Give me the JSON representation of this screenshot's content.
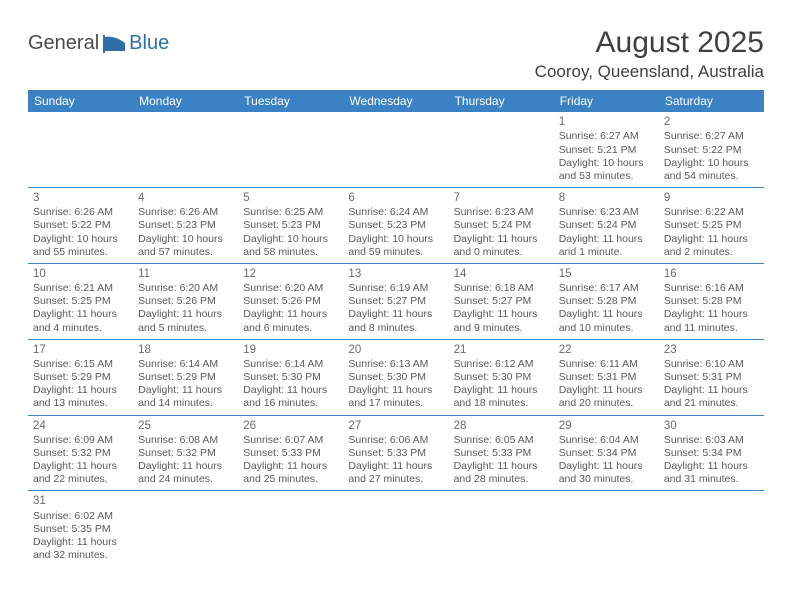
{
  "logo": {
    "text1": "General",
    "text2": "Blue"
  },
  "title": "August 2025",
  "location": "Cooroy, Queensland, Australia",
  "colors": {
    "header_bg": "#3b82c4",
    "border": "#3b82c4",
    "text": "#5a5a5a",
    "title_text": "#404040"
  },
  "daysOfWeek": [
    "Sunday",
    "Monday",
    "Tuesday",
    "Wednesday",
    "Thursday",
    "Friday",
    "Saturday"
  ],
  "weeks": [
    [
      {
        "n": "",
        "sr": "",
        "ss": "",
        "dl": ""
      },
      {
        "n": "",
        "sr": "",
        "ss": "",
        "dl": ""
      },
      {
        "n": "",
        "sr": "",
        "ss": "",
        "dl": ""
      },
      {
        "n": "",
        "sr": "",
        "ss": "",
        "dl": ""
      },
      {
        "n": "",
        "sr": "",
        "ss": "",
        "dl": ""
      },
      {
        "n": "1",
        "sr": "Sunrise: 6:27 AM",
        "ss": "Sunset: 5:21 PM",
        "dl": "Daylight: 10 hours and 53 minutes."
      },
      {
        "n": "2",
        "sr": "Sunrise: 6:27 AM",
        "ss": "Sunset: 5:22 PM",
        "dl": "Daylight: 10 hours and 54 minutes."
      }
    ],
    [
      {
        "n": "3",
        "sr": "Sunrise: 6:26 AM",
        "ss": "Sunset: 5:22 PM",
        "dl": "Daylight: 10 hours and 55 minutes."
      },
      {
        "n": "4",
        "sr": "Sunrise: 6:26 AM",
        "ss": "Sunset: 5:23 PM",
        "dl": "Daylight: 10 hours and 57 minutes."
      },
      {
        "n": "5",
        "sr": "Sunrise: 6:25 AM",
        "ss": "Sunset: 5:23 PM",
        "dl": "Daylight: 10 hours and 58 minutes."
      },
      {
        "n": "6",
        "sr": "Sunrise: 6:24 AM",
        "ss": "Sunset: 5:23 PM",
        "dl": "Daylight: 10 hours and 59 minutes."
      },
      {
        "n": "7",
        "sr": "Sunrise: 6:23 AM",
        "ss": "Sunset: 5:24 PM",
        "dl": "Daylight: 11 hours and 0 minutes."
      },
      {
        "n": "8",
        "sr": "Sunrise: 6:23 AM",
        "ss": "Sunset: 5:24 PM",
        "dl": "Daylight: 11 hours and 1 minute."
      },
      {
        "n": "9",
        "sr": "Sunrise: 6:22 AM",
        "ss": "Sunset: 5:25 PM",
        "dl": "Daylight: 11 hours and 2 minutes."
      }
    ],
    [
      {
        "n": "10",
        "sr": "Sunrise: 6:21 AM",
        "ss": "Sunset: 5:25 PM",
        "dl": "Daylight: 11 hours and 4 minutes."
      },
      {
        "n": "11",
        "sr": "Sunrise: 6:20 AM",
        "ss": "Sunset: 5:26 PM",
        "dl": "Daylight: 11 hours and 5 minutes."
      },
      {
        "n": "12",
        "sr": "Sunrise: 6:20 AM",
        "ss": "Sunset: 5:26 PM",
        "dl": "Daylight: 11 hours and 6 minutes."
      },
      {
        "n": "13",
        "sr": "Sunrise: 6:19 AM",
        "ss": "Sunset: 5:27 PM",
        "dl": "Daylight: 11 hours and 8 minutes."
      },
      {
        "n": "14",
        "sr": "Sunrise: 6:18 AM",
        "ss": "Sunset: 5:27 PM",
        "dl": "Daylight: 11 hours and 9 minutes."
      },
      {
        "n": "15",
        "sr": "Sunrise: 6:17 AM",
        "ss": "Sunset: 5:28 PM",
        "dl": "Daylight: 11 hours and 10 minutes."
      },
      {
        "n": "16",
        "sr": "Sunrise: 6:16 AM",
        "ss": "Sunset: 5:28 PM",
        "dl": "Daylight: 11 hours and 11 minutes."
      }
    ],
    [
      {
        "n": "17",
        "sr": "Sunrise: 6:15 AM",
        "ss": "Sunset: 5:29 PM",
        "dl": "Daylight: 11 hours and 13 minutes."
      },
      {
        "n": "18",
        "sr": "Sunrise: 6:14 AM",
        "ss": "Sunset: 5:29 PM",
        "dl": "Daylight: 11 hours and 14 minutes."
      },
      {
        "n": "19",
        "sr": "Sunrise: 6:14 AM",
        "ss": "Sunset: 5:30 PM",
        "dl": "Daylight: 11 hours and 16 minutes."
      },
      {
        "n": "20",
        "sr": "Sunrise: 6:13 AM",
        "ss": "Sunset: 5:30 PM",
        "dl": "Daylight: 11 hours and 17 minutes."
      },
      {
        "n": "21",
        "sr": "Sunrise: 6:12 AM",
        "ss": "Sunset: 5:30 PM",
        "dl": "Daylight: 11 hours and 18 minutes."
      },
      {
        "n": "22",
        "sr": "Sunrise: 6:11 AM",
        "ss": "Sunset: 5:31 PM",
        "dl": "Daylight: 11 hours and 20 minutes."
      },
      {
        "n": "23",
        "sr": "Sunrise: 6:10 AM",
        "ss": "Sunset: 5:31 PM",
        "dl": "Daylight: 11 hours and 21 minutes."
      }
    ],
    [
      {
        "n": "24",
        "sr": "Sunrise: 6:09 AM",
        "ss": "Sunset: 5:32 PM",
        "dl": "Daylight: 11 hours and 22 minutes."
      },
      {
        "n": "25",
        "sr": "Sunrise: 6:08 AM",
        "ss": "Sunset: 5:32 PM",
        "dl": "Daylight: 11 hours and 24 minutes."
      },
      {
        "n": "26",
        "sr": "Sunrise: 6:07 AM",
        "ss": "Sunset: 5:33 PM",
        "dl": "Daylight: 11 hours and 25 minutes."
      },
      {
        "n": "27",
        "sr": "Sunrise: 6:06 AM",
        "ss": "Sunset: 5:33 PM",
        "dl": "Daylight: 11 hours and 27 minutes."
      },
      {
        "n": "28",
        "sr": "Sunrise: 6:05 AM",
        "ss": "Sunset: 5:33 PM",
        "dl": "Daylight: 11 hours and 28 minutes."
      },
      {
        "n": "29",
        "sr": "Sunrise: 6:04 AM",
        "ss": "Sunset: 5:34 PM",
        "dl": "Daylight: 11 hours and 30 minutes."
      },
      {
        "n": "30",
        "sr": "Sunrise: 6:03 AM",
        "ss": "Sunset: 5:34 PM",
        "dl": "Daylight: 11 hours and 31 minutes."
      }
    ],
    [
      {
        "n": "31",
        "sr": "Sunrise: 6:02 AM",
        "ss": "Sunset: 5:35 PM",
        "dl": "Daylight: 11 hours and 32 minutes."
      },
      {
        "n": "",
        "sr": "",
        "ss": "",
        "dl": ""
      },
      {
        "n": "",
        "sr": "",
        "ss": "",
        "dl": ""
      },
      {
        "n": "",
        "sr": "",
        "ss": "",
        "dl": ""
      },
      {
        "n": "",
        "sr": "",
        "ss": "",
        "dl": ""
      },
      {
        "n": "",
        "sr": "",
        "ss": "",
        "dl": ""
      },
      {
        "n": "",
        "sr": "",
        "ss": "",
        "dl": ""
      }
    ]
  ]
}
